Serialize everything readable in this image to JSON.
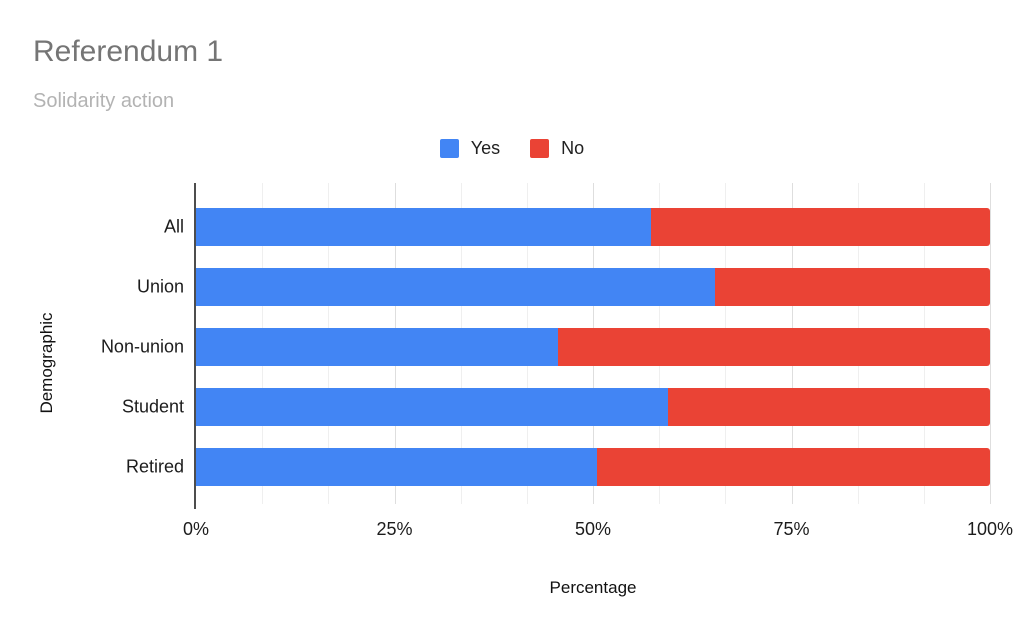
{
  "header": {
    "title": "Referendum 1",
    "subtitle": "Solidarity action"
  },
  "chart_data": {
    "type": "bar",
    "orientation": "horizontal",
    "stacked": true,
    "percent_stacked": true,
    "title": "Referendum 1",
    "subtitle": "Solidarity action",
    "categories": [
      "All",
      "Union",
      "Non-union",
      "Student",
      "Retired"
    ],
    "series": [
      {
        "name": "Yes",
        "color": "#4285f4",
        "values": [
          57.3,
          65.4,
          45.6,
          59.4,
          50.5
        ]
      },
      {
        "name": "No",
        "color": "#ea4335",
        "values": [
          42.7,
          34.6,
          54.4,
          40.6,
          49.5
        ]
      }
    ],
    "xlabel": "Percentage",
    "ylabel": "Demographic",
    "xlim": [
      0,
      100
    ],
    "x_ticks": [
      "0%",
      "25%",
      "50%",
      "75%",
      "100%"
    ],
    "grid": "vertical gridlines: major every 25%, two minor lines between majors",
    "legend_position": "top-center"
  },
  "colors": {
    "yes": "#4285f4",
    "no": "#ea4335",
    "title_text": "#757575",
    "subtitle_text": "#b3b3b3",
    "axis_line": "#4d4d4d",
    "major_gridline": "#dedede",
    "minor_gridline": "#efefef",
    "label_text": "#1c1c1c",
    "background": "#ffffff"
  }
}
